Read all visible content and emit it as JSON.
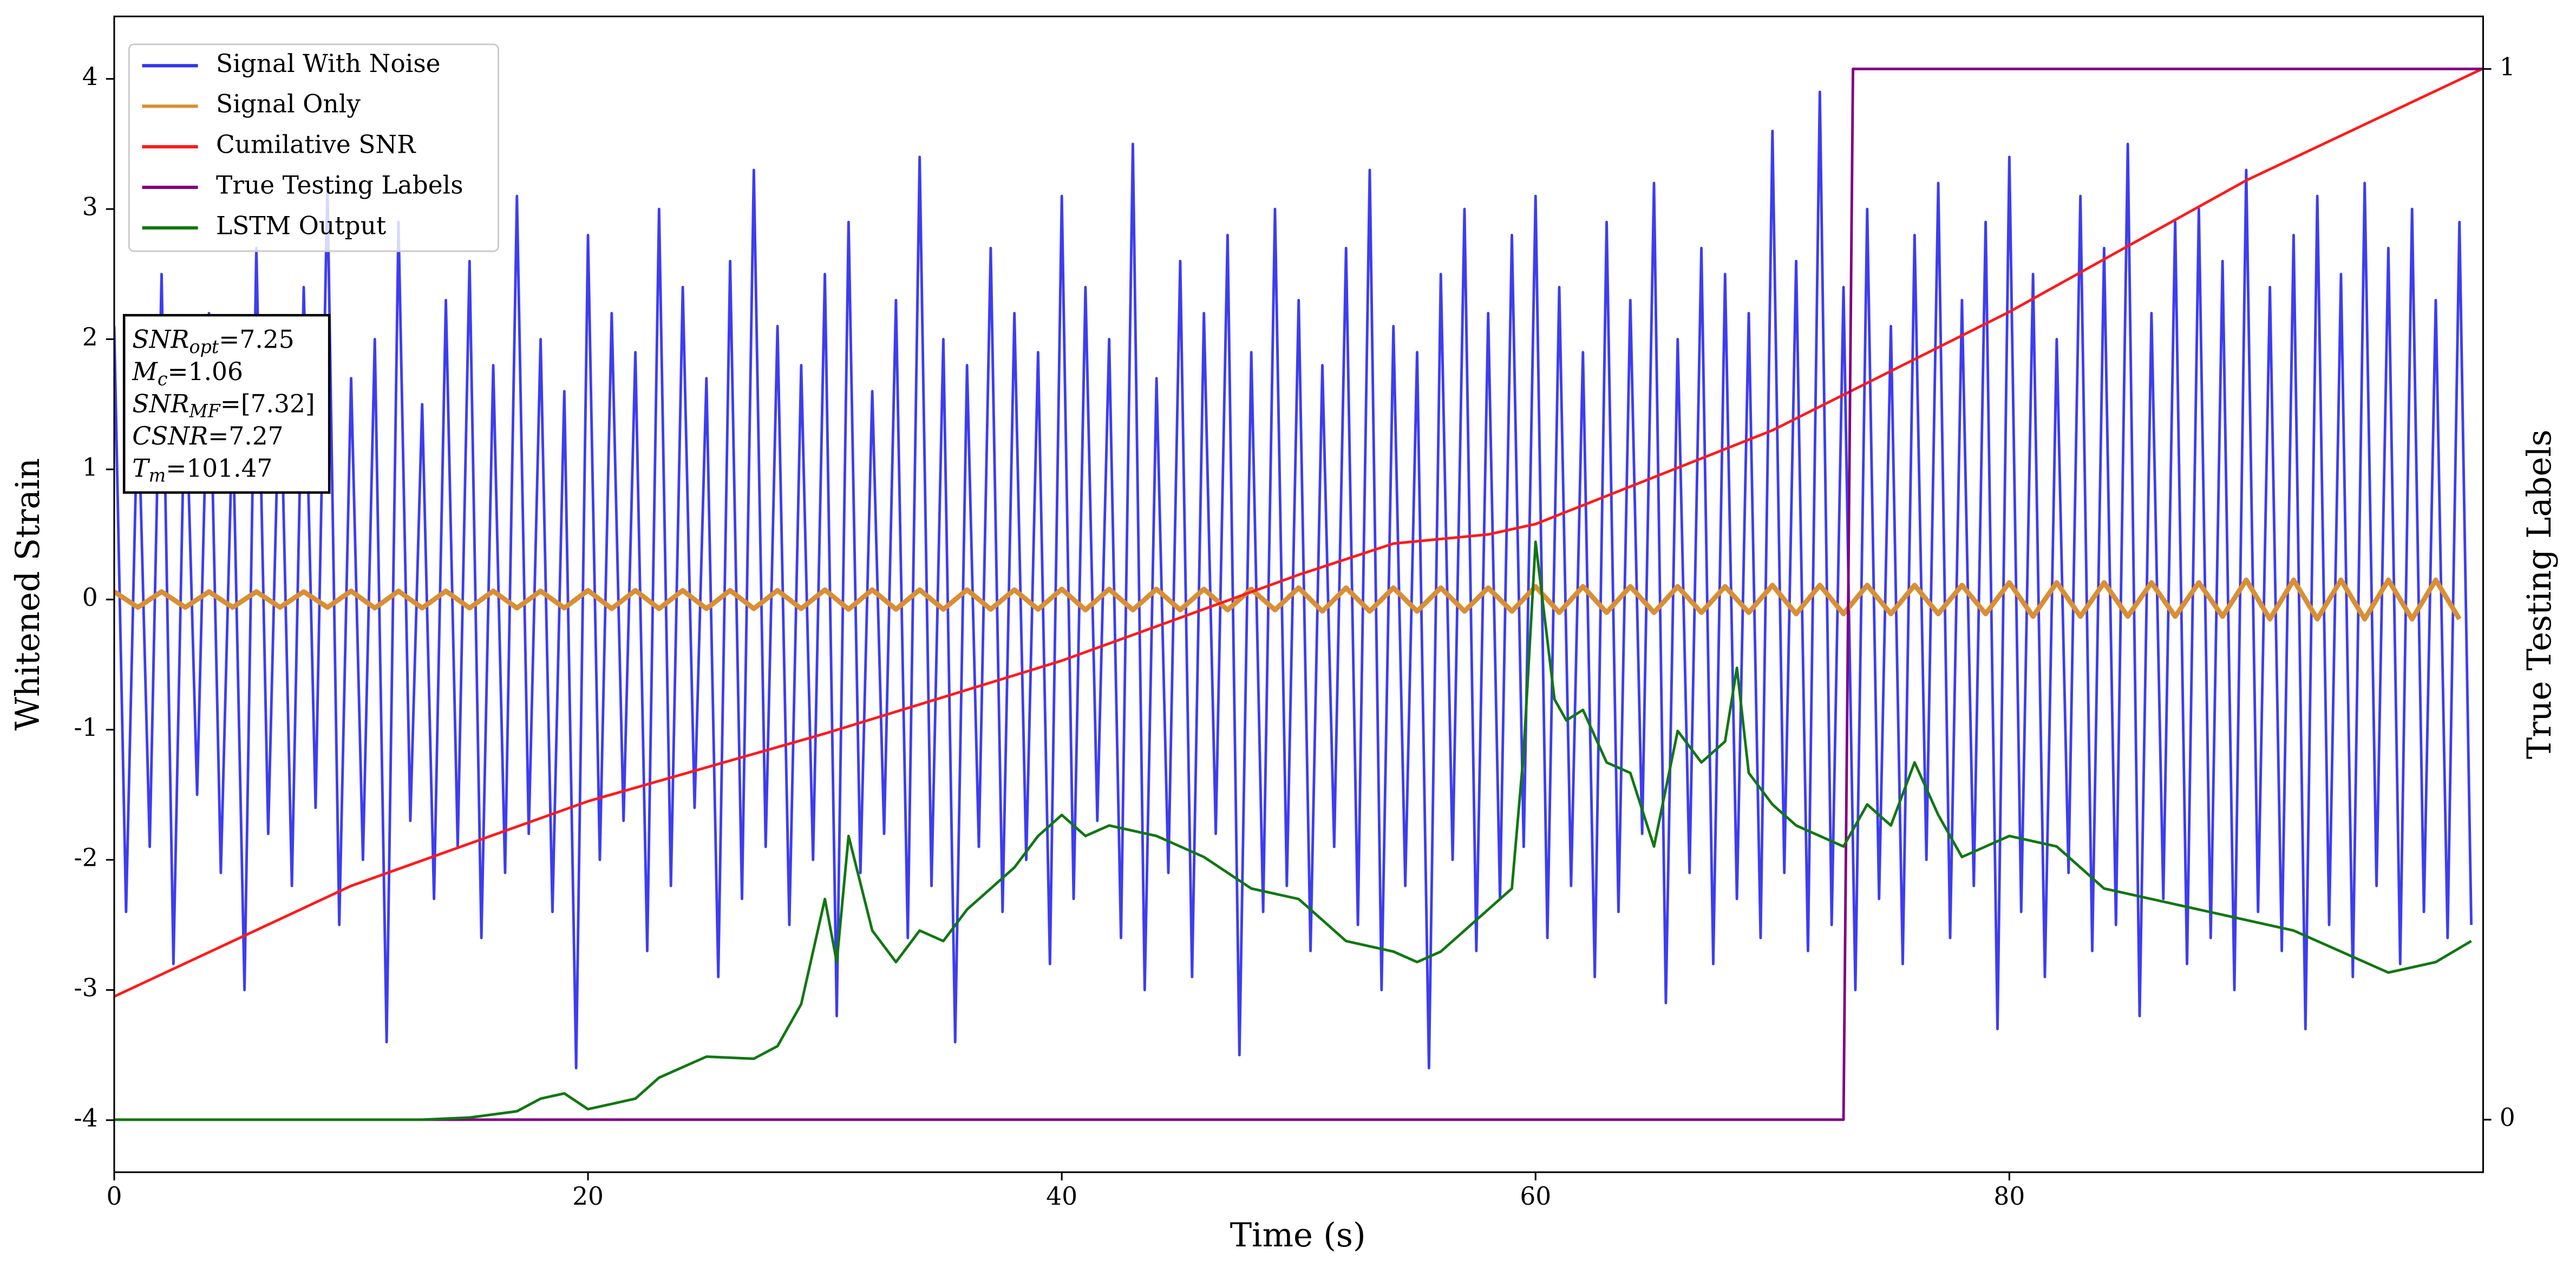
{
  "chart_data": {
    "type": "line",
    "xlabel": "Time (s)",
    "ylabel": "Whitened Strain",
    "y2label": "True Testing Labels",
    "xlim": [
      0,
      100
    ],
    "xticks": [
      0,
      20,
      40,
      60,
      80
    ],
    "ylim": [
      -4.4,
      4.48
    ],
    "yticks": [
      -4,
      -3,
      -2,
      -1,
      0,
      1,
      2,
      3,
      4
    ],
    "y2lim": [
      -0.05,
      1.05
    ],
    "y2ticks": [
      0,
      1
    ],
    "legend": "upper left",
    "annotations": [
      {
        "symbol": "SNR",
        "sub": "opt",
        "text": "=7.25"
      },
      {
        "symbol": "M",
        "sub": "c",
        "text": "=1.06"
      },
      {
        "symbol": "SNR",
        "sub": "MF",
        "text": "=[7.32]"
      },
      {
        "symbol": "CSNR",
        "text": "=7.27"
      },
      {
        "symbol": "T",
        "sub": "m",
        "text": "=101.47"
      }
    ],
    "series": [
      {
        "name": "Signal With Noise",
        "color": "#3333f0",
        "x": [
          0,
          0.5,
          1,
          1.5,
          2,
          2.5,
          3,
          3.5,
          4,
          4.5,
          5,
          5.5,
          6,
          6.5,
          7,
          7.5,
          8,
          8.5,
          9,
          9.5,
          10,
          10.5,
          11,
          11.5,
          12,
          12.5,
          13,
          13.5,
          14,
          14.5,
          15,
          15.5,
          16,
          16.5,
          17,
          17.5,
          18,
          18.5,
          19,
          19.5,
          20,
          20.5,
          21,
          21.5,
          22,
          22.5,
          23,
          23.5,
          24,
          24.5,
          25,
          25.5,
          26,
          26.5,
          27,
          27.5,
          28,
          28.5,
          29,
          29.5,
          30,
          30.5,
          31,
          31.5,
          32,
          32.5,
          33,
          33.5,
          34,
          34.5,
          35,
          35.5,
          36,
          36.5,
          37,
          37.5,
          38,
          38.5,
          39,
          39.5,
          40,
          40.5,
          41,
          41.5,
          42,
          42.5,
          43,
          43.5,
          44,
          44.5,
          45,
          45.5,
          46,
          46.5,
          47,
          47.5,
          48,
          48.5,
          49,
          49.5,
          50,
          50.5,
          51,
          51.5,
          52,
          52.5,
          53,
          53.5,
          54,
          54.5,
          55,
          55.5,
          56,
          56.5,
          57,
          57.5,
          58,
          58.5,
          59,
          59.5,
          60,
          60.5,
          61,
          61.5,
          62,
          62.5,
          63,
          63.5,
          64,
          64.5,
          65,
          65.5,
          66,
          66.5,
          67,
          67.5,
          68,
          68.5,
          69,
          69.5,
          70,
          70.5,
          71,
          71.5,
          72,
          72.5,
          73,
          73.5,
          74,
          74.5,
          75,
          75.5,
          76,
          76.5,
          77,
          77.5,
          78,
          78.5,
          79,
          79.5,
          80,
          80.5,
          81,
          81.5,
          82,
          82.5,
          83,
          83.5,
          84,
          84.5,
          85,
          85.5,
          86,
          86.5,
          87,
          87.5,
          88,
          88.5,
          89,
          89.5,
          90,
          90.5,
          91,
          91.5,
          92,
          92.5,
          93,
          93.5,
          94,
          94.5,
          95,
          95.5,
          96,
          96.5,
          97,
          97.5,
          98,
          98.5,
          99,
          99.5
        ],
        "values": [
          2.1,
          -2.4,
          1.6,
          -1.9,
          2.5,
          -2.8,
          1.8,
          -1.5,
          2.2,
          -2.1,
          1.4,
          -3.0,
          2.7,
          -1.8,
          1.9,
          -2.2,
          2.4,
          -1.6,
          3.2,
          -2.5,
          1.7,
          -2.0,
          2.0,
          -3.4,
          2.9,
          -1.7,
          1.5,
          -2.3,
          2.3,
          -1.9,
          2.6,
          -2.6,
          1.8,
          -2.1,
          3.1,
          -1.8,
          2.0,
          -2.4,
          1.6,
          -3.6,
          2.8,
          -2.0,
          2.2,
          -1.7,
          1.9,
          -2.7,
          3.0,
          -2.2,
          2.4,
          -1.6,
          1.7,
          -2.9,
          2.6,
          -2.3,
          3.3,
          -1.9,
          2.1,
          -2.5,
          1.8,
          -2.0,
          2.5,
          -3.2,
          2.9,
          -2.1,
          1.6,
          -1.8,
          2.3,
          -2.6,
          3.4,
          -2.2,
          2.0,
          -3.4,
          1.8,
          -1.9,
          2.7,
          -2.4,
          2.2,
          -2.0,
          1.9,
          -2.8,
          3.1,
          -2.3,
          2.4,
          -1.7,
          2.0,
          -2.6,
          3.5,
          -3.0,
          1.7,
          -2.1,
          2.6,
          -2.9,
          2.2,
          -1.8,
          2.8,
          -3.5,
          1.9,
          -2.4,
          3.0,
          -2.2,
          2.3,
          -2.7,
          1.8,
          -1.9,
          2.7,
          -2.5,
          3.3,
          -3.0,
          2.1,
          -2.2,
          1.9,
          -3.6,
          2.5,
          -2.0,
          3.0,
          -2.7,
          2.2,
          -2.3,
          2.8,
          -1.9,
          3.1,
          -2.6,
          2.4,
          -2.2,
          1.9,
          -2.9,
          2.9,
          -2.4,
          2.3,
          -1.8,
          3.2,
          -3.1,
          2.0,
          -2.1,
          2.7,
          -2.8,
          2.5,
          -2.3,
          2.2,
          -2.6,
          3.6,
          -2.1,
          2.6,
          -2.7,
          3.9,
          -2.5,
          2.4,
          -3.0,
          3.0,
          -2.3,
          2.1,
          -2.8,
          2.8,
          -2.0,
          3.2,
          -2.6,
          2.3,
          -2.2,
          2.9,
          -3.3,
          3.4,
          -2.4,
          2.5,
          -2.9,
          2.0,
          -2.1,
          3.1,
          -2.7,
          2.7,
          -2.5,
          3.5,
          -3.2,
          2.2,
          -2.3,
          2.9,
          -2.8,
          3.0,
          -2.6,
          2.6,
          -3.0,
          3.3,
          -2.4,
          2.4,
          -2.7,
          2.8,
          -3.3,
          3.1,
          -2.5,
          2.5,
          -2.9,
          3.2,
          -2.2,
          2.7,
          -2.8,
          3.0,
          -2.4,
          2.3,
          -2.6,
          2.9,
          -2.5
        ]
      },
      {
        "name": "Signal Only",
        "color": "#d98f33",
        "x": [
          0,
          1,
          2,
          3,
          4,
          5,
          6,
          7,
          8,
          9,
          10,
          11,
          12,
          13,
          14,
          15,
          16,
          17,
          18,
          19,
          20,
          21,
          22,
          23,
          24,
          25,
          26,
          27,
          28,
          29,
          30,
          31,
          32,
          33,
          34,
          35,
          36,
          37,
          38,
          39,
          40,
          41,
          42,
          43,
          44,
          45,
          46,
          47,
          48,
          49,
          50,
          51,
          52,
          53,
          54,
          55,
          56,
          57,
          58,
          59,
          60,
          61,
          62,
          63,
          64,
          65,
          66,
          67,
          68,
          69,
          70,
          71,
          72,
          73,
          74,
          75,
          76,
          77,
          78,
          79,
          80,
          81,
          82,
          83,
          84,
          85,
          86,
          87,
          88,
          89,
          90,
          91,
          92,
          93,
          94,
          95,
          96,
          97,
          98,
          99
        ],
        "values": [
          0.06,
          -0.06,
          0.06,
          -0.06,
          0.06,
          -0.06,
          0.06,
          -0.06,
          0.06,
          -0.06,
          0.065,
          -0.065,
          0.065,
          -0.065,
          0.065,
          -0.065,
          0.065,
          -0.065,
          0.065,
          -0.065,
          0.07,
          -0.07,
          0.07,
          -0.07,
          0.07,
          -0.07,
          0.07,
          -0.07,
          0.07,
          -0.07,
          0.075,
          -0.075,
          0.075,
          -0.075,
          0.075,
          -0.075,
          0.075,
          -0.075,
          0.075,
          -0.075,
          0.08,
          -0.08,
          0.08,
          -0.08,
          0.08,
          -0.08,
          0.08,
          -0.08,
          0.08,
          -0.08,
          0.09,
          -0.09,
          0.09,
          -0.09,
          0.09,
          -0.09,
          0.09,
          -0.09,
          0.09,
          -0.09,
          0.1,
          -0.1,
          0.1,
          -0.1,
          0.1,
          -0.1,
          0.1,
          -0.1,
          0.1,
          -0.1,
          0.11,
          -0.11,
          0.11,
          -0.11,
          0.11,
          -0.11,
          0.11,
          -0.11,
          0.11,
          -0.11,
          0.13,
          -0.13,
          0.13,
          -0.13,
          0.13,
          -0.13,
          0.13,
          -0.13,
          0.13,
          -0.13,
          0.15,
          -0.15,
          0.15,
          -0.15,
          0.15,
          -0.15,
          0.15,
          -0.15,
          0.15,
          -0.15
        ]
      },
      {
        "name": "Cumilative SNR",
        "color": "#ff1a1a",
        "x": [
          0,
          10,
          20,
          30,
          40,
          50,
          54,
          58,
          60,
          70,
          80,
          90,
          100
        ],
        "values": [
          -3.05,
          -2.2,
          -1.55,
          -1.03,
          -0.47,
          0.19,
          0.43,
          0.5,
          0.58,
          1.3,
          2.21,
          3.22,
          4.08
        ]
      },
      {
        "name": "True Testing Labels",
        "color": "#800080",
        "axis": "y2",
        "x": [
          0,
          73,
          73.4,
          100
        ],
        "values": [
          0,
          0,
          1,
          1
        ]
      },
      {
        "name": "LSTM Output",
        "color": "#117711",
        "axis": "y2",
        "x": [
          0,
          13,
          15,
          17,
          18,
          19,
          20,
          22,
          23,
          25,
          27,
          28,
          29,
          30,
          30.5,
          31,
          32,
          33,
          34,
          35,
          36,
          37,
          38,
          39,
          40,
          41,
          42,
          44,
          46,
          48,
          50,
          52,
          54,
          55,
          56,
          58,
          59,
          59.5,
          60,
          60.8,
          61.3,
          62,
          63,
          64,
          65,
          66,
          67,
          68,
          68.5,
          69,
          70,
          71,
          72,
          73,
          74,
          75,
          76,
          77,
          78,
          80,
          82,
          84,
          86,
          88,
          90,
          92,
          94,
          96,
          98,
          99.5
        ],
        "values": [
          0,
          0,
          0.002,
          0.008,
          0.02,
          0.025,
          0.01,
          0.02,
          0.04,
          0.06,
          0.058,
          0.07,
          0.11,
          0.21,
          0.15,
          0.27,
          0.18,
          0.15,
          0.18,
          0.17,
          0.2,
          0.22,
          0.24,
          0.27,
          0.29,
          0.27,
          0.28,
          0.27,
          0.25,
          0.22,
          0.21,
          0.17,
          0.16,
          0.15,
          0.16,
          0.2,
          0.22,
          0.35,
          0.55,
          0.4,
          0.38,
          0.39,
          0.34,
          0.33,
          0.26,
          0.37,
          0.34,
          0.36,
          0.43,
          0.33,
          0.3,
          0.28,
          0.27,
          0.26,
          0.3,
          0.28,
          0.34,
          0.29,
          0.25,
          0.27,
          0.26,
          0.22,
          0.21,
          0.2,
          0.19,
          0.18,
          0.16,
          0.14,
          0.15,
          0.17
        ]
      }
    ]
  }
}
